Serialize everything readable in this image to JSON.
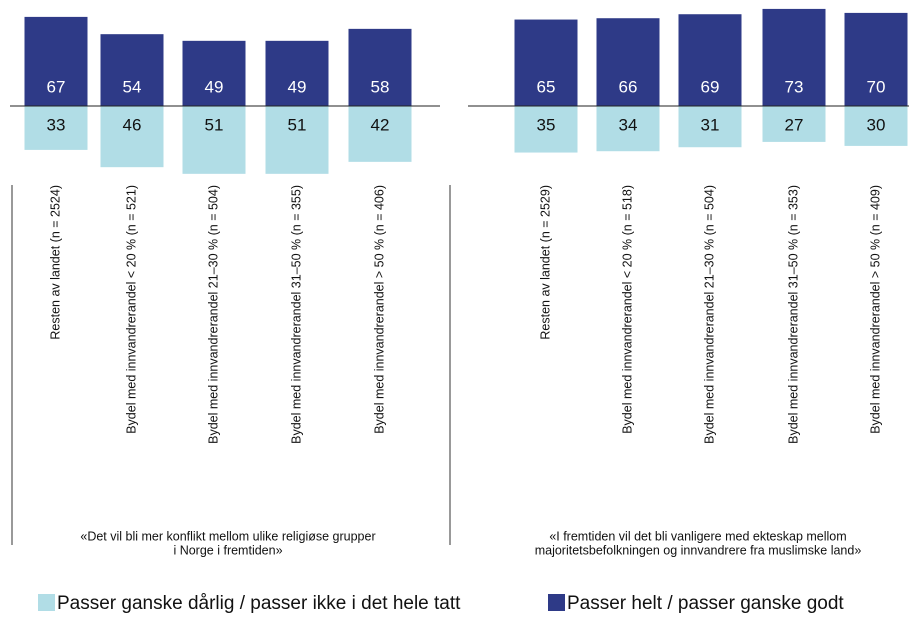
{
  "chart_data": {
    "type": "diverging_bar",
    "series": [
      {
        "name": "Passer helt / passer ganske godt",
        "color": "#2e3a87",
        "values": [
          [
            67,
            54,
            49,
            49,
            58
          ],
          [
            65,
            66,
            69,
            73,
            70
          ]
        ]
      },
      {
        "name": "Passer ganske dårlig / passer ikke i det hele tatt",
        "color": "#b1dde6",
        "values": [
          [
            33,
            46,
            51,
            51,
            42
          ],
          [
            35,
            34,
            31,
            27,
            30
          ]
        ]
      }
    ],
    "categories": [
      [
        "Resten av landet (n = 2524)",
        "Bydel med innvandrerandel < 20 % (n = 521)",
        "Bydel med innvandrerandel 21–30 % (n = 504)",
        "Bydel med innvandrerandel 31–50 % (n = 355)",
        "Bydel med innvandrerandel > 50 % (n = 406)"
      ],
      [
        "Resten av landet (n = 2529)",
        "Bydel med innvandrerandel < 20 % (n = 518)",
        "Bydel med innvandrerandel 21–30 % (n = 504)",
        "Bydel med innvandrerandel 31–50 % (n = 353)",
        "Bydel med innvandrerandel > 50 % (n = 409)"
      ]
    ],
    "captions": [
      [
        "«Det vil bli mer konflikt mellom ulike religiøse grupper",
        "i Norge i fremtiden»"
      ],
      [
        "«I fremtiden vil det bli vanligere med ekteskap mellom",
        "majoritetsbefolkningen og innvandrere fra muslimske land»"
      ]
    ]
  }
}
